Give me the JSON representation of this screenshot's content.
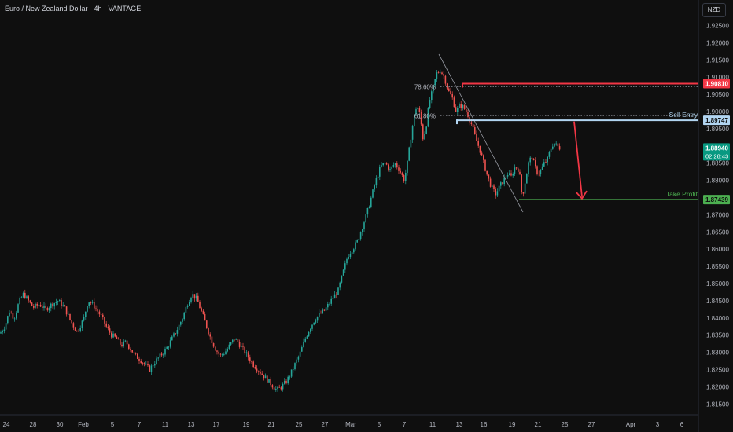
{
  "header": {
    "title": "Euro / New Zealand Dollar · 4h · VANTAGE",
    "currency": "NZD"
  },
  "colors": {
    "up": "#26a69a",
    "down": "#ef5350",
    "resistance": "#f23645",
    "sell": "#b2d5f1",
    "tp": "#4caf50",
    "arrow": "#f23645",
    "background": "#0f0f0f"
  },
  "chart_data": {
    "type": "candlestick",
    "symbol": "EURNZD",
    "timeframe": "4h",
    "ylim": [
      1.8125,
      1.93
    ],
    "y_ticks": [
      "1.92500",
      "1.92000",
      "1.91500",
      "1.91000",
      "1.90500",
      "1.90000",
      "1.89500",
      "1.88500",
      "1.88000",
      "1.87500",
      "1.87000",
      "1.86500",
      "1.86000",
      "1.85500",
      "1.85000",
      "1.84500",
      "1.84000",
      "1.83500",
      "1.83000",
      "1.82500",
      "1.82000",
      "1.81500"
    ],
    "x_ticks": [
      "24",
      "28",
      "30",
      "Feb",
      "5",
      "7",
      "11",
      "13",
      "17",
      "19",
      "21",
      "25",
      "27",
      "Mar",
      "5",
      "7",
      "11",
      "13",
      "16",
      "19",
      "21",
      "25",
      "27",
      "Apr",
      "3",
      "6"
    ],
    "current_price": {
      "value": "1.88940",
      "countdown": "02:28:43"
    },
    "levels": [
      {
        "name": "resistance",
        "price": 1.9081,
        "label": "1.90810",
        "text": ""
      },
      {
        "name": "sell-entry",
        "price": 1.89747,
        "label": "1.89747",
        "text": "Sell Entry"
      },
      {
        "name": "take-profit",
        "price": 1.87439,
        "label": "1.87439",
        "text": "Take Profit"
      }
    ],
    "fib_levels": [
      {
        "label": "78.60%",
        "price": 1.9072
      },
      {
        "label": "61.80%",
        "price": 1.8988
      }
    ],
    "close_path": [
      [
        0,
        1.8355
      ],
      [
        6,
        1.8375
      ],
      [
        12,
        1.842
      ],
      [
        18,
        1.84
      ],
      [
        24,
        1.8445
      ],
      [
        30,
        1.847
      ],
      [
        36,
        1.845
      ],
      [
        42,
        1.843
      ],
      [
        50,
        1.844
      ],
      [
        58,
        1.8425
      ],
      [
        66,
        1.844
      ],
      [
        74,
        1.845
      ],
      [
        82,
        1.843
      ],
      [
        90,
        1.839
      ],
      [
        98,
        1.836
      ],
      [
        106,
        1.8395
      ],
      [
        112,
        1.845
      ],
      [
        118,
        1.844
      ],
      [
        124,
        1.842
      ],
      [
        130,
        1.84
      ],
      [
        136,
        1.837
      ],
      [
        142,
        1.835
      ],
      [
        148,
        1.834
      ],
      [
        154,
        1.832
      ],
      [
        160,
        1.833
      ],
      [
        166,
        1.831
      ],
      [
        172,
        1.829
      ],
      [
        178,
        1.828
      ],
      [
        184,
        1.8265
      ],
      [
        190,
        1.825
      ],
      [
        196,
        1.827
      ],
      [
        202,
        1.8285
      ],
      [
        208,
        1.83
      ],
      [
        214,
        1.832
      ],
      [
        220,
        1.8345
      ],
      [
        226,
        1.837
      ],
      [
        232,
        1.84
      ],
      [
        238,
        1.844
      ],
      [
        244,
        1.847
      ],
      [
        250,
        1.8455
      ],
      [
        256,
        1.842
      ],
      [
        262,
        1.838
      ],
      [
        268,
        1.834
      ],
      [
        274,
        1.831
      ],
      [
        280,
        1.829
      ],
      [
        286,
        1.83
      ],
      [
        292,
        1.832
      ],
      [
        298,
        1.834
      ],
      [
        304,
        1.8325
      ],
      [
        310,
        1.8305
      ],
      [
        316,
        1.8285
      ],
      [
        322,
        1.8265
      ],
      [
        328,
        1.825
      ],
      [
        334,
        1.8235
      ],
      [
        340,
        1.822
      ],
      [
        346,
        1.8205
      ],
      [
        352,
        1.819
      ],
      [
        358,
        1.82
      ],
      [
        364,
        1.8215
      ],
      [
        370,
        1.824
      ],
      [
        376,
        1.827
      ],
      [
        382,
        1.83
      ],
      [
        388,
        1.834
      ],
      [
        394,
        1.837
      ],
      [
        400,
        1.8395
      ],
      [
        406,
        1.841
      ],
      [
        412,
        1.842
      ],
      [
        418,
        1.844
      ],
      [
        424,
        1.846
      ],
      [
        430,
        1.848
      ],
      [
        436,
        1.853
      ],
      [
        442,
        1.858
      ],
      [
        448,
        1.86
      ],
      [
        454,
        1.862
      ],
      [
        460,
        1.866
      ],
      [
        466,
        1.87
      ],
      [
        472,
        1.875
      ],
      [
        478,
        1.88
      ],
      [
        484,
        1.884
      ],
      [
        490,
        1.885
      ],
      [
        496,
        1.883
      ],
      [
        502,
        1.885
      ],
      [
        508,
        1.883
      ],
      [
        514,
        1.88
      ],
      [
        518,
        1.885
      ],
      [
        522,
        1.892
      ],
      [
        526,
        1.898
      ],
      [
        530,
        1.902
      ],
      [
        534,
        1.899
      ],
      [
        538,
        1.892
      ],
      [
        542,
        1.896
      ],
      [
        546,
        1.903
      ],
      [
        550,
        1.906
      ],
      [
        555,
        1.911
      ],
      [
        560,
        1.912
      ],
      [
        565,
        1.91
      ],
      [
        570,
        1.906
      ],
      [
        575,
        1.904
      ],
      [
        580,
        1.9
      ],
      [
        585,
        1.902
      ],
      [
        590,
        1.901
      ],
      [
        595,
        1.899
      ],
      [
        600,
        1.896
      ],
      [
        605,
        1.892
      ],
      [
        610,
        1.889
      ],
      [
        615,
        1.885
      ],
      [
        620,
        1.881
      ],
      [
        625,
        1.878
      ],
      [
        630,
        1.876
      ],
      [
        635,
        1.878
      ],
      [
        640,
        1.88
      ],
      [
        645,
        1.882
      ],
      [
        650,
        1.881
      ],
      [
        655,
        1.884
      ],
      [
        660,
        1.883
      ],
      [
        664,
        1.875
      ],
      [
        668,
        1.88
      ],
      [
        672,
        1.885
      ],
      [
        676,
        1.887
      ],
      [
        680,
        1.884
      ],
      [
        684,
        1.882
      ],
      [
        688,
        1.883
      ],
      [
        692,
        1.885
      ],
      [
        696,
        1.886
      ],
      [
        700,
        1.889
      ],
      [
        704,
        1.891
      ],
      [
        708,
        1.89
      ],
      [
        712,
        1.8894
      ]
    ]
  }
}
